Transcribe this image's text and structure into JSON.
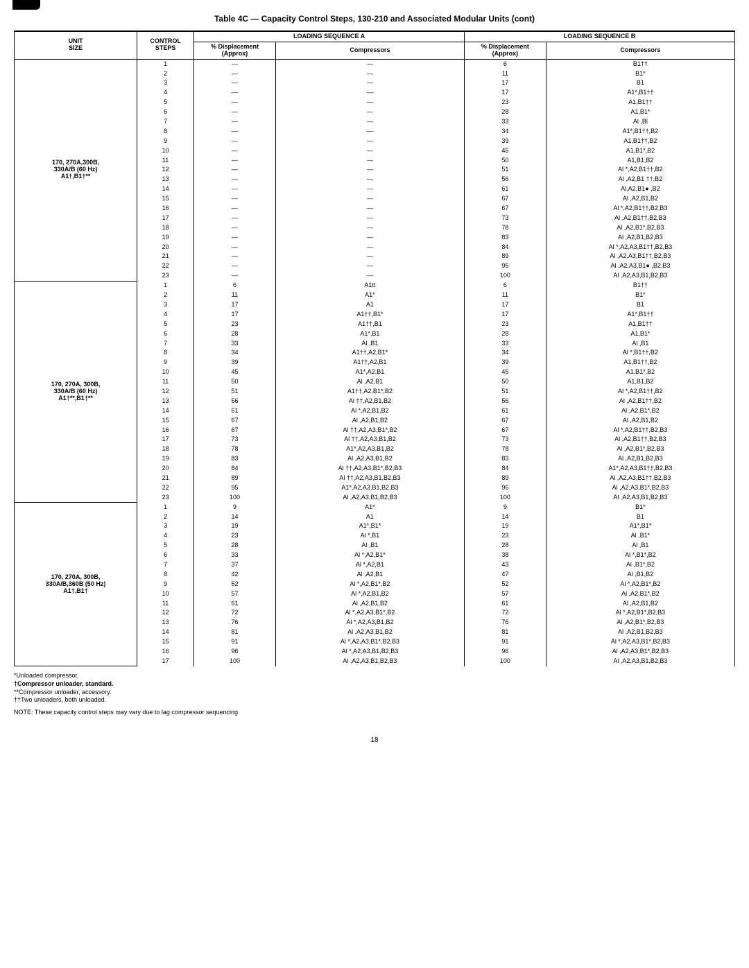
{
  "title": "Table 4C — Capacity Control Steps, 130-210 and Associated Modular Units (cont)",
  "headers": {
    "unit": "UNIT\nSIZE",
    "control": "CONTROL\nSTEPS",
    "seqA": "LOADING SEQUENCE A",
    "seqB": "LOADING SEQUENCE B",
    "displacement": "%\nDisplacement\n(Approx)",
    "compressors": "Compressors"
  },
  "blocks": [
    {
      "unit": "170, 270A,300B,\n330A/B (60 Hz)\nA1†,B1†**",
      "rows": [
        {
          "s": "1",
          "da": "—",
          "ca": "—",
          "db": "6",
          "cb": "B1††"
        },
        {
          "s": "2",
          "da": "—",
          "ca": "—",
          "db": "11",
          "cb": "B1*"
        },
        {
          "s": "3",
          "da": "—",
          "ca": "—",
          "db": "17",
          "cb": "B1"
        },
        {
          "s": "4",
          "da": "—",
          "ca": "—",
          "db": "17",
          "cb": "A1*,B1††"
        },
        {
          "s": "5",
          "da": "—",
          "ca": "—",
          "db": "23",
          "cb": "A1,B1††"
        },
        {
          "s": "6",
          "da": "—",
          "ca": "—",
          "db": "28",
          "cb": "A1,B1*"
        },
        {
          "s": "7",
          "da": "—",
          "ca": "—",
          "db": "33",
          "cb": "Al ,Bl"
        },
        {
          "s": "8",
          "da": "—",
          "ca": "—",
          "db": "34",
          "cb": "A1*,B1††,B2"
        },
        {
          "s": "9",
          "da": "—",
          "ca": "—",
          "db": "39",
          "cb": "A1,B1††,B2"
        },
        {
          "s": "10",
          "da": "—",
          "ca": "—",
          "db": "45",
          "cb": "A1,B1*,B2"
        },
        {
          "s": "11",
          "da": "—",
          "ca": "—",
          "db": "50",
          "cb": "A1,B1,B2"
        },
        {
          "s": "12",
          "da": "—",
          "ca": "—",
          "db": "51",
          "cb": "Al *,A2,B1††,B2"
        },
        {
          "s": "13",
          "da": "—",
          "ca": "—",
          "db": "56",
          "cb": "Al ,A2,B1 ††,B2"
        },
        {
          "s": "14",
          "da": "—",
          "ca": "—",
          "db": "61",
          "cb": "Al,A2,B1● ,B2"
        },
        {
          "s": "15",
          "da": "—",
          "ca": "—",
          "db": "67",
          "cb": "Al ,A2,B1,B2"
        },
        {
          "s": "16",
          "da": "—",
          "ca": "—",
          "db": "67",
          "cb": "Al *,A2,B1††,B2,B3"
        },
        {
          "s": "17",
          "da": "—",
          "ca": "—",
          "db": "73",
          "cb": "Al ,A2,B1††,B2,B3"
        },
        {
          "s": "18",
          "da": "—",
          "ca": "—",
          "db": "78",
          "cb": "Al ,A2,B1*,B2,B3"
        },
        {
          "s": "19",
          "da": "—",
          "ca": "—",
          "db": "83",
          "cb": "Al ,A2,B1,B2,B3"
        },
        {
          "s": "20",
          "da": "—",
          "ca": "—",
          "db": "84",
          "cb": "Al *,A2,A3,B1††,B2,B3"
        },
        {
          "s": "21",
          "da": "—",
          "ca": "—",
          "db": "89",
          "cb": "Al ,A2,A3,B1††,B2,B3"
        },
        {
          "s": "22",
          "da": "—",
          "ca": "—",
          "db": "95",
          "cb": "Al ,A2,A3,B1● ,B2,B3"
        },
        {
          "s": "23",
          "da": "—",
          "ca": "—",
          "db": "100",
          "cb": "Al ,A2,A3,B1,B2,B3"
        }
      ]
    },
    {
      "unit": "170, 270A, 300B,\n330A/B (60 Hz)\nA1†**,B1†**",
      "rows": [
        {
          "s": "1",
          "da": "6",
          "ca": "A1tt",
          "db": "6",
          "cb": "B1††"
        },
        {
          "s": "2",
          "da": "11",
          "ca": "A1*",
          "db": "11",
          "cb": "B1*"
        },
        {
          "s": "3",
          "da": "17",
          "ca": "A1",
          "db": "17",
          "cb": "B1"
        },
        {
          "s": "4",
          "da": "17",
          "ca": "A1††,B1*",
          "db": "17",
          "cb": "A1*,B1††"
        },
        {
          "s": "5",
          "da": "23",
          "ca": "A1††,B1",
          "db": "23",
          "cb": "A1,B1††"
        },
        {
          "s": "6",
          "da": "28",
          "ca": "A1*,B1",
          "db": "28",
          "cb": "A1,B1*"
        },
        {
          "s": "7",
          "da": "33",
          "ca": "Al ,B1",
          "db": "33",
          "cb": "Al ,B1"
        },
        {
          "s": "8",
          "da": "34",
          "ca": "A1††,A2,B1*",
          "db": "34",
          "cb": "Al *,B1††,B2"
        },
        {
          "s": "9",
          "da": "39",
          "ca": "A1††,A2,B1",
          "db": "39",
          "cb": "A1,B1††,B2"
        },
        {
          "s": "10",
          "da": "45",
          "ca": "A1*,A2,B1",
          "db": "45",
          "cb": "A1,B1*,B2"
        },
        {
          "s": "11",
          "da": "50",
          "ca": "Al ,A2,B1",
          "db": "50",
          "cb": "A1,B1,B2"
        },
        {
          "s": "12",
          "da": "51",
          "ca": "A1††,A2,B1*,B2",
          "db": "51",
          "cb": "Al *,A2,B1††,B2"
        },
        {
          "s": "13",
          "da": "56",
          "ca": "Al ††,A2,B1,B2",
          "db": "56",
          "cb": "Al ,A2,B1††,B2"
        },
        {
          "s": "14",
          "da": "61",
          "ca": "Al *,A2,B1,B2",
          "db": "61",
          "cb": "Al ,A2,B1*,B2"
        },
        {
          "s": "15",
          "da": "67",
          "ca": "Al ,A2,B1,B2",
          "db": "67",
          "cb": "Al ,A2,B1,B2"
        },
        {
          "s": "16",
          "da": "67",
          "ca": "Al ††,A2,A3,B1*,B2",
          "db": "67",
          "cb": "Al *,A2,B1††,B2,B3"
        },
        {
          "s": "17",
          "da": "73",
          "ca": "Al ††,A2,A3,B1,B2",
          "db": "73",
          "cb": "Al ,A2,B1††,B2,B3"
        },
        {
          "s": "18",
          "da": "78",
          "ca": "A1*,A2,A3,B1,B2",
          "db": "78",
          "cb": "Al ,A2,B1*,B2,B3"
        },
        {
          "s": "19",
          "da": "83",
          "ca": "Al ,A2,A3,B1,B2",
          "db": "83",
          "cb": "Al ,A2,B1,B2,B3"
        },
        {
          "s": "20",
          "da": "84",
          "ca": "Al ††,A2,A3,B1*,B2,B3",
          "db": "84",
          "cb": "A1*,A2,A3,B1††,B2,B3"
        },
        {
          "s": "21",
          "da": "89",
          "ca": "Al ††,A2,A3,B1,B2,B3",
          "db": "89",
          "cb": "Al ,A2,A3,B1††,B2,B3"
        },
        {
          "s": "22",
          "da": "95",
          "ca": "A1*,A2,A3,B1,B2,B3",
          "db": "95",
          "cb": "Al ,A2,A3,B1*,B2,B3"
        },
        {
          "s": "23",
          "da": "100",
          "ca": "Al ,A2,A3,B1,B2,B3",
          "db": "100",
          "cb": "Al ,A2,A3,B1,B2,B3"
        }
      ]
    },
    {
      "unit": "170, 270A, 300B,\n330A/B,360B (50 Hz)\nA1†,B1†",
      "rows": [
        {
          "s": "1",
          "da": "9",
          "ca": "A1*",
          "db": "9",
          "cb": "B1*"
        },
        {
          "s": "2",
          "da": "14",
          "ca": "A1",
          "db": "14",
          "cb": "B1"
        },
        {
          "s": "3",
          "da": "19",
          "ca": "A1*,B1*",
          "db": "19",
          "cb": "A1*,B1*"
        },
        {
          "s": "4",
          "da": "23",
          "ca": "Al *,B1",
          "db": "23",
          "cb": "Al ,B1*"
        },
        {
          "s": "5",
          "da": "28",
          "ca": "Al ,B1",
          "db": "28",
          "cb": "Al ,B1"
        },
        {
          "s": "6",
          "da": "33",
          "ca": "Al *,A2,B1*",
          "db": "38",
          "cb": "Al *,B1*,B2"
        },
        {
          "s": "7",
          "da": "37",
          "ca": "Al *,A2,B1",
          "db": "43",
          "cb": "Al ,B1*,B2"
        },
        {
          "s": "8",
          "da": "42",
          "ca": "Al ,A2,B1",
          "db": "47",
          "cb": "Al ,B1,B2"
        },
        {
          "s": "9",
          "da": "52",
          "ca": "Al *,A2,B1*,B2",
          "db": "52",
          "cb": "Al *,A2,B1*,B2"
        },
        {
          "s": "10",
          "da": "57",
          "ca": "Al *,A2,B1,B2",
          "db": "57",
          "cb": "Al ,A2,B1*,B2"
        },
        {
          "s": "11",
          "da": "61",
          "ca": "Al ,A2,B1,B2",
          "db": "61",
          "cb": "Al ,A2,B1,B2"
        },
        {
          "s": "12",
          "da": "72",
          "ca": "Al *,A2,A3,B1*,B2",
          "db": "72",
          "cb": "Al *,A2,B1*,B2,B3"
        },
        {
          "s": "13",
          "da": "76",
          "ca": "Al *,A2,A3,B1,B2",
          "db": "76",
          "cb": "Al ,A2,B1*,B2,B3"
        },
        {
          "s": "14",
          "da": "81",
          "ca": "Al ,A2,A3,B1,B2",
          "db": "81",
          "cb": "Al ,A2,B1,B2,B3"
        },
        {
          "s": "15",
          "da": "91",
          "ca": "Al *,A2,A3,B1*,B2,B3",
          "db": "91",
          "cb": "Al *,A2,A3,B1*,B2,B3"
        },
        {
          "s": "16",
          "da": "96",
          "ca": "Al *,A2,A3,B1,B2,B3",
          "db": "96",
          "cb": "Al ,A2,A3,B1*,B2,B3"
        },
        {
          "s": "17",
          "da": "100",
          "ca": "Al ,A2,A3,B1,B2,B3",
          "db": "100",
          "cb": "Al ,A2,A3,B1,B2,B3"
        }
      ]
    }
  ],
  "footnotes": {
    "f1": "*Unloaded compressor.",
    "f2": "†Compressor unloader, standard.",
    "f3": "**Compressor unloader, accessory.",
    "f4": "††Two unloaders, both unloaded."
  },
  "note": "NOTE: These capacity control steps may vary due to lag compressor sequencing",
  "page": "18"
}
